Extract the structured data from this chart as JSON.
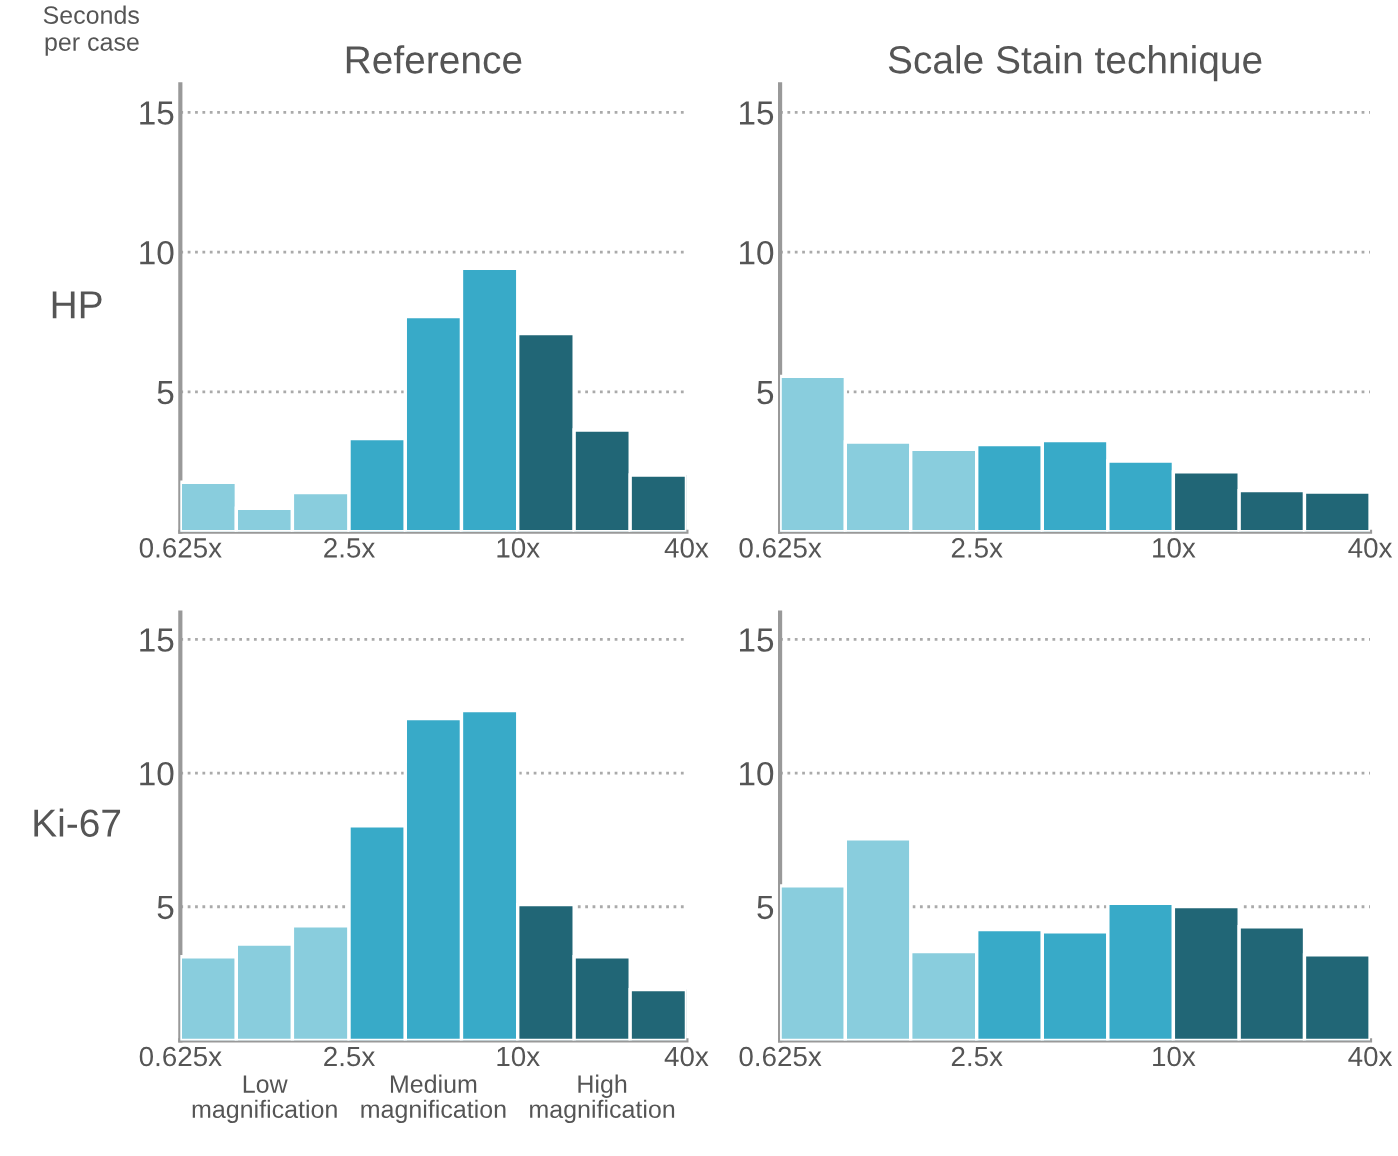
{
  "chart_data": [
    {
      "type": "histogram",
      "title": "Reference",
      "ylabel": "HP",
      "annotations": [
        "Seconds\nper case"
      ],
      "bins": [
        0.625,
        0.99,
        1.57,
        2.5,
        3.97,
        6.3,
        10,
        15.9,
        25.2,
        40
      ],
      "values": [
        1.77,
        0.84,
        1.4,
        3.33,
        7.7,
        9.42,
        7.09,
        3.64,
        2.03
      ],
      "colors": [
        "#89cddd",
        "#89cddd",
        "#89cddd",
        "#38aac8",
        "#38aac8",
        "#38aac8",
        "#216676",
        "#216676",
        "#216676"
      ],
      "log": "x",
      "xlim": [
        0.625,
        40
      ],
      "ylim": [
        0,
        16
      ],
      "xticks": [
        {
          "value": 0.625,
          "label": "0.625x"
        },
        {
          "value": 2.5,
          "label": "2.5x"
        },
        {
          "value": 10,
          "label": "10x"
        },
        {
          "value": 40,
          "label": "40x"
        }
      ],
      "yticks": [
        5,
        10,
        15
      ],
      "grid": "y"
    },
    {
      "type": "histogram",
      "title": "Scale Stain technique",
      "bins": [
        0.625,
        0.99,
        1.57,
        2.5,
        3.97,
        6.3,
        10,
        15.9,
        25.2,
        40
      ],
      "values": [
        5.56,
        3.21,
        2.95,
        3.12,
        3.26,
        2.53,
        2.14,
        1.47,
        1.42
      ],
      "colors": [
        "#89cddd",
        "#89cddd",
        "#89cddd",
        "#38aac8",
        "#38aac8",
        "#38aac8",
        "#216676",
        "#216676",
        "#216676"
      ],
      "log": "x",
      "xlim": [
        0.625,
        40
      ],
      "ylim": [
        0,
        16
      ],
      "xticks": [
        {
          "value": 0.625,
          "label": "0.625x"
        },
        {
          "value": 2.5,
          "label": "2.5x"
        },
        {
          "value": 10,
          "label": "10x"
        },
        {
          "value": 40,
          "label": "40x"
        }
      ],
      "yticks": [
        5,
        10,
        15
      ],
      "grid": "y"
    },
    {
      "type": "histogram",
      "ylabel": "Ki-67",
      "annotations": [
        "Low\nmagnification",
        "Medium\nmagnification",
        "High\nmagnification"
      ],
      "bins": [
        0.625,
        0.99,
        1.57,
        2.5,
        3.97,
        6.3,
        10,
        15.9,
        25.2,
        40
      ],
      "values": [
        3.13,
        3.6,
        4.29,
        8.03,
        12.04,
        12.34,
        5.08,
        3.13,
        1.9
      ],
      "colors": [
        "#89cddd",
        "#89cddd",
        "#89cddd",
        "#38aac8",
        "#38aac8",
        "#38aac8",
        "#216676",
        "#216676",
        "#216676"
      ],
      "log": "x",
      "xlim": [
        0.625,
        40
      ],
      "ylim": [
        0,
        16
      ],
      "xticks": [
        {
          "value": 0.625,
          "label": "0.625x"
        },
        {
          "value": 2.5,
          "label": "2.5x"
        },
        {
          "value": 10,
          "label": "10x"
        },
        {
          "value": 40,
          "label": "40x"
        }
      ],
      "yticks": [
        5,
        10,
        15
      ],
      "grid": "y"
    },
    {
      "type": "histogram",
      "bins": [
        0.625,
        0.99,
        1.57,
        2.5,
        3.97,
        6.3,
        10,
        15.9,
        25.2,
        40
      ],
      "values": [
        5.78,
        7.54,
        3.32,
        4.15,
        4.06,
        5.13,
        5.01,
        4.25,
        3.2
      ],
      "colors": [
        "#89cddd",
        "#89cddd",
        "#89cddd",
        "#38aac8",
        "#38aac8",
        "#38aac8",
        "#216676",
        "#216676",
        "#216676"
      ],
      "log": "x",
      "xlim": [
        0.625,
        40
      ],
      "ylim": [
        0,
        16
      ],
      "xticks": [
        {
          "value": 0.625,
          "label": "0.625x"
        },
        {
          "value": 2.5,
          "label": "2.5x"
        },
        {
          "value": 10,
          "label": "10x"
        },
        {
          "value": 40,
          "label": "40x"
        }
      ],
      "yticks": [
        5,
        10,
        15
      ],
      "grid": "y"
    }
  ]
}
